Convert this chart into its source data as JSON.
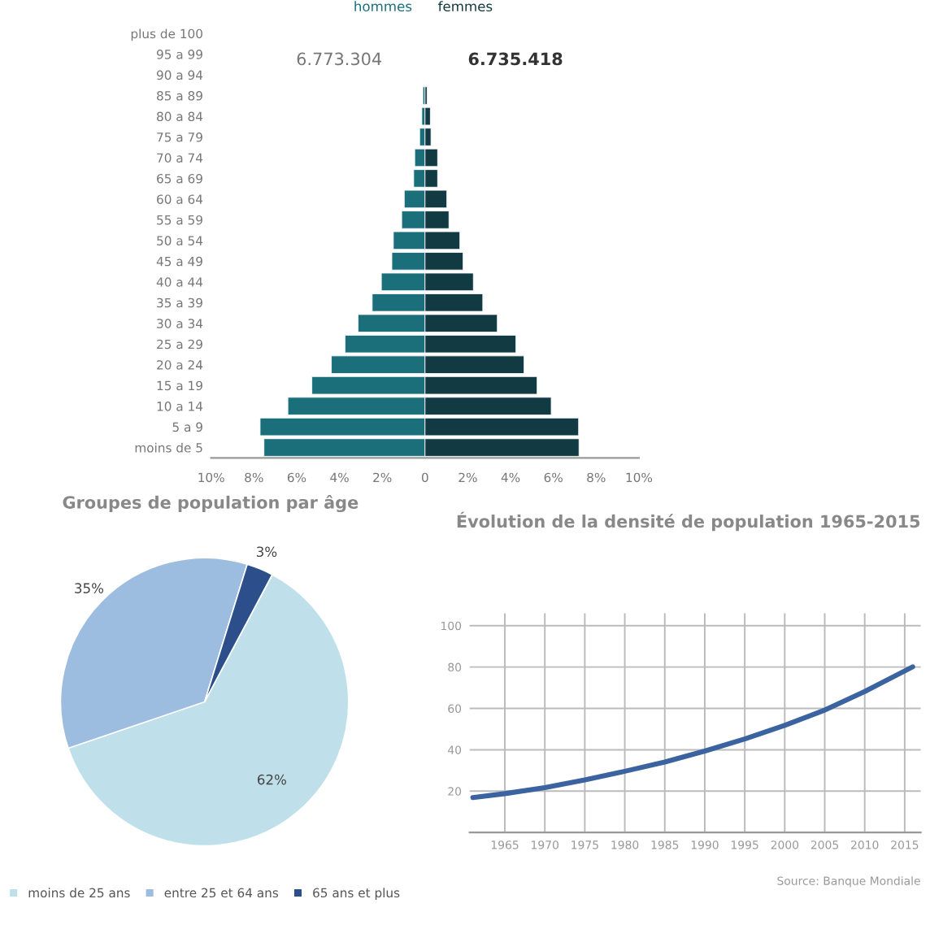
{
  "chart_data": [
    {
      "type": "bar",
      "orientation": "horizontal",
      "stacked": true,
      "categories": [
        "plus de 100",
        "95 a 99",
        "90 a 94",
        "85 a 89",
        "80 a 84",
        "75 a 79",
        "70 a 74",
        "65 a 69",
        "60 a 64",
        "55 a 59",
        "50 a 54",
        "45 a 49",
        "40 a 44",
        "35 a 39",
        "30 a 34",
        "25 a 29",
        "20 a 24",
        "15 a 19",
        "10 a 14",
        "5 a 9",
        "moins de 5"
      ],
      "series": [
        {
          "name": "hommes",
          "color": "#1a6f7a",
          "values": [
            null,
            null,
            null,
            -0.1,
            -0.15,
            -0.25,
            -0.48,
            -0.53,
            -0.97,
            -1.09,
            -1.48,
            -1.55,
            -2.04,
            -2.47,
            -3.13,
            -3.74,
            -4.38,
            -5.29,
            -6.41,
            -7.71,
            -7.53
          ]
        },
        {
          "name": "femmes",
          "color": "#123a42",
          "values": [
            null,
            null,
            null,
            0.1,
            0.25,
            0.28,
            0.59,
            0.59,
            1.02,
            1.12,
            1.63,
            1.78,
            2.26,
            2.7,
            3.38,
            4.25,
            4.63,
            5.24,
            5.9,
            7.18,
            7.2
          ]
        }
      ],
      "xlim": [
        -10,
        10
      ],
      "xticks": [
        {
          "value": -10,
          "label": "10%"
        },
        {
          "value": -8,
          "label": "8%"
        },
        {
          "value": -6,
          "label": "6%"
        },
        {
          "value": -4,
          "label": "4%"
        },
        {
          "value": -2,
          "label": "2%"
        },
        0,
        {
          "value": 2,
          "label": "2%"
        },
        {
          "value": 4,
          "label": "4%"
        },
        {
          "value": 6,
          "label": "6%"
        },
        {
          "value": 8,
          "label": "8%"
        },
        {
          "value": 10,
          "label": "10%"
        }
      ],
      "annotations": [
        "6.773.304",
        "6.735.418"
      ],
      "grid": false,
      "legend": "top"
    },
    {
      "type": "pie",
      "title": "Groupes de population par âge",
      "categories": [
        "moins de 25 ans",
        "entre 25 et 64 ans",
        "65 ans et plus"
      ],
      "values": [
        62,
        35,
        3
      ],
      "colors": [
        "#bfe0ea",
        "#9dbde0",
        "#2c4f8c"
      ],
      "value_labels": [
        "62%",
        "35%",
        "3%"
      ],
      "legend": "bottom"
    },
    {
      "type": "line",
      "title": "Évolution de la densité de population 1965-2015",
      "x": [
        1961,
        1965,
        1970,
        1975,
        1980,
        1985,
        1990,
        1995,
        2000,
        2005,
        2010,
        2016
      ],
      "series": [
        {
          "color": "#3a63a0",
          "values": [
            16.9,
            18.8,
            21.7,
            25.4,
            29.6,
            34.1,
            39.4,
            45.2,
            51.8,
            59.2,
            68.2,
            80.1
          ]
        }
      ],
      "xlim": [
        1960.6,
        2017
      ],
      "xticks": [
        1965,
        1970,
        1975,
        1980,
        1985,
        1990,
        1995,
        2000,
        2005,
        2010,
        2015
      ],
      "ylim": [
        0,
        106
      ],
      "yticks": [
        20,
        40,
        60,
        80,
        100
      ],
      "grid": true,
      "annotations": [
        "Source: Banque Mondiale"
      ]
    }
  ]
}
